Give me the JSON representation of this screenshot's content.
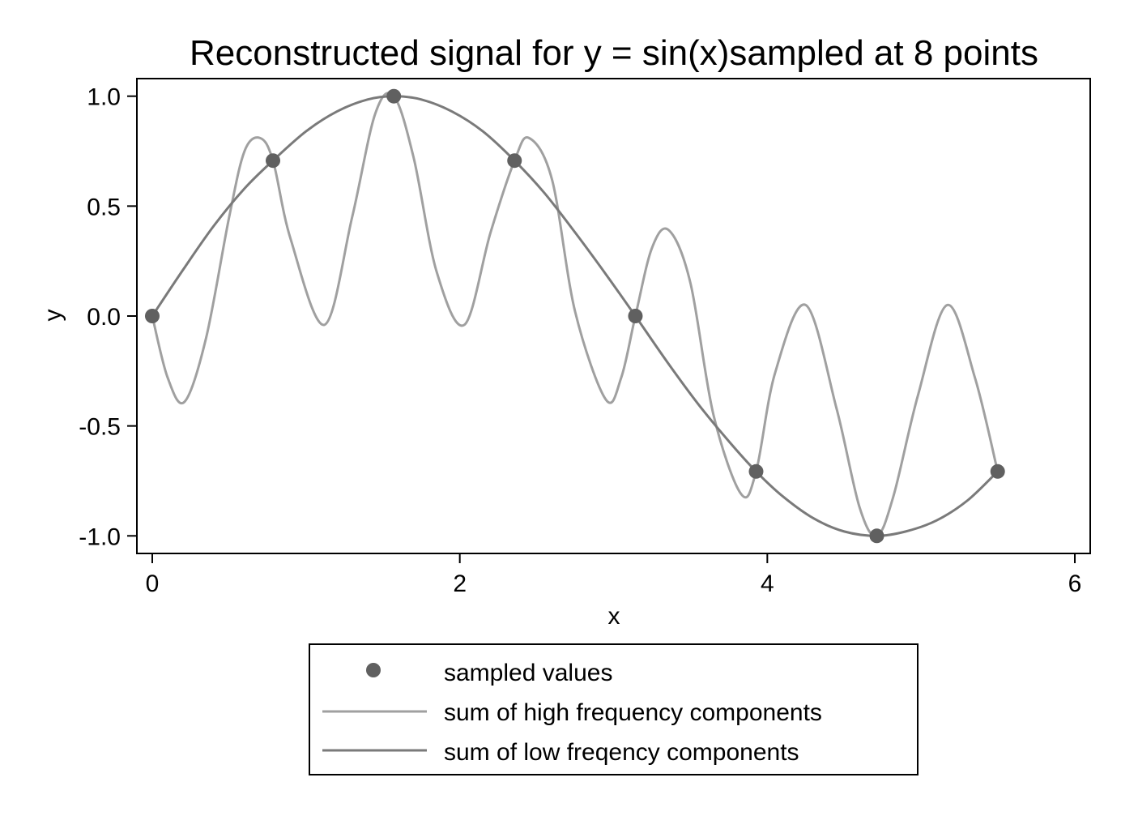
{
  "chart_data": {
    "type": "line",
    "title": "Reconstructed signal for y = sin(x)sampled at 8 points",
    "xlabel": "x",
    "ylabel": "y",
    "xlim": [
      -0.1,
      6.1
    ],
    "ylim": [
      -1.08,
      1.08
    ],
    "xticks": [
      0,
      2,
      4,
      6
    ],
    "xtick_labels": [
      "0",
      "2",
      "4",
      "6"
    ],
    "yticks": [
      1.0,
      0.5,
      0.0,
      -0.5,
      -1.0
    ],
    "ytick_labels": [
      "1.0",
      "0.5",
      "0.0",
      "-0.5",
      "-1.0"
    ],
    "grid": false,
    "legend_position": "bottom",
    "series": [
      {
        "name": "sampled values",
        "kind": "scatter",
        "color": "#606060",
        "x": [
          0,
          0.785,
          1.571,
          2.356,
          3.142,
          3.927,
          4.712,
          5.498
        ],
        "y": [
          0,
          0.707,
          1.0,
          0.707,
          0,
          -0.707,
          -1.0,
          -0.707
        ]
      },
      {
        "name": "sum of high frequency components",
        "kind": "line",
        "color": "#a0a0a0",
        "x": [
          0,
          0.1,
          0.21,
          0.35,
          0.5,
          0.6,
          0.7,
          0.785,
          0.9,
          1.12,
          1.3,
          1.45,
          1.571,
          1.7,
          1.85,
          2.03,
          2.2,
          2.356,
          2.45,
          2.6,
          2.75,
          2.95,
          3.05,
          3.142,
          3.25,
          3.36,
          3.5,
          3.65,
          3.83,
          3.927,
          4.05,
          4.25,
          4.45,
          4.6,
          4.712,
          4.82,
          4.98,
          5.17,
          5.35,
          5.498
        ],
        "y": [
          0,
          -0.28,
          -0.39,
          -0.1,
          0.45,
          0.75,
          0.81,
          0.707,
          0.35,
          -0.04,
          0.45,
          0.92,
          1.0,
          0.72,
          0.2,
          -0.04,
          0.38,
          0.707,
          0.81,
          0.62,
          0.02,
          -0.38,
          -0.28,
          0,
          0.31,
          0.39,
          0.15,
          -0.45,
          -0.81,
          -0.707,
          -0.26,
          0.05,
          -0.42,
          -0.87,
          -1.0,
          -0.82,
          -0.36,
          0.05,
          -0.28,
          -0.707
        ]
      },
      {
        "name": "sum of low freqency components",
        "kind": "line",
        "color": "#7a7a7a",
        "x": [
          0,
          0.2,
          0.4,
          0.6,
          0.785,
          1.0,
          1.2,
          1.4,
          1.571,
          1.75,
          1.95,
          2.15,
          2.356,
          2.55,
          2.75,
          2.95,
          3.142,
          3.35,
          3.55,
          3.75,
          3.927,
          4.1,
          4.3,
          4.5,
          4.712,
          4.9,
          5.1,
          5.3,
          5.498
        ],
        "y": [
          0,
          0.21,
          0.41,
          0.58,
          0.707,
          0.84,
          0.93,
          0.985,
          1.0,
          0.985,
          0.93,
          0.84,
          0.707,
          0.56,
          0.38,
          0.19,
          0,
          -0.21,
          -0.4,
          -0.57,
          -0.707,
          -0.82,
          -0.92,
          -0.98,
          -1.0,
          -0.98,
          -0.93,
          -0.84,
          -0.707
        ]
      }
    ]
  }
}
